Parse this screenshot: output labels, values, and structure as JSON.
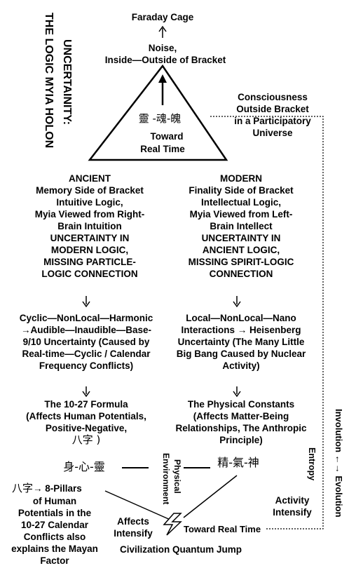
{
  "title": {
    "line1": "UNCERTAINITY:",
    "line2": "THE LOGIC MYIA HOLON"
  },
  "top": {
    "faraday": "Faraday Cage",
    "noise": "Noise,",
    "inside_outside": "Inside—Outside of Bracket"
  },
  "triangle": {
    "cjk": "靈 -魂-魄",
    "toward": "Toward",
    "real_time": "Real Time"
  },
  "consciousness": [
    "Consciousness",
    "Outside Bracket",
    "in a Participatory",
    "Universe"
  ],
  "ancient": {
    "heading": "ANCIENT",
    "lines": [
      "Memory Side of Bracket",
      "Intuitive Logic,",
      "Myia Viewed from Right-",
      "Brain Intuition",
      "UNCERTAINTY IN",
      "MODERN LOGIC,",
      "MISSING PARTICLE-",
      "LOGIC CONNECTION"
    ]
  },
  "modern": {
    "heading": "MODERN",
    "lines": [
      "Finality Side of Bracket",
      "Intellectual Logic,",
      "Myia Viewed from Left-",
      "Brain Intellect",
      "UNCERTAINTY IN",
      "ANCIENT LOGIC,",
      "MISSING SPIRIT-LOGIC",
      "CONNECTION"
    ]
  },
  "cyclic": [
    "Cyclic—NonLocal—Harmonic",
    "→Audible—Inaudible—Base-",
    "9/10 Uncertainty (Caused by",
    "Real-time—Cyclic / Calendar",
    "Frequency Conflicts)"
  ],
  "local": [
    "Local—NonLocal—Nano",
    "Interactions → Heisenberg",
    "Uncertainty (The Many Little",
    "Big Bang Caused by Nuclear",
    "Activity)"
  ],
  "formula": [
    "The 10-27 Formula",
    "(Affects Human Potentials,",
    "Positive-Negative,",
    "八字 )"
  ],
  "formula_cjk": "身-心-靈",
  "constants": [
    "The Physical Constants",
    "(Affects Matter-Being",
    "Relationships, The Anthropic",
    "Principle)"
  ],
  "constants_cjk": "精-氣-神",
  "physical_env": [
    "Physical",
    "Environment"
  ],
  "entropy": "Entropy",
  "involution": "Involution ←→ Evolution",
  "activity": [
    "Activity",
    "Intensify"
  ],
  "pillars": {
    "head_cjk": "八字",
    "head_text": "→ 8-Pillars",
    "lines": [
      "of Human",
      "Potentials in the",
      "10-27 Calendar",
      "Conflicts also",
      "explains the Mayan",
      "Factor"
    ]
  },
  "affects": [
    "Affects",
    "Intensify"
  ],
  "toward_real_time": "Toward Real Time",
  "civilization": "Civilization Quantum Jump"
}
